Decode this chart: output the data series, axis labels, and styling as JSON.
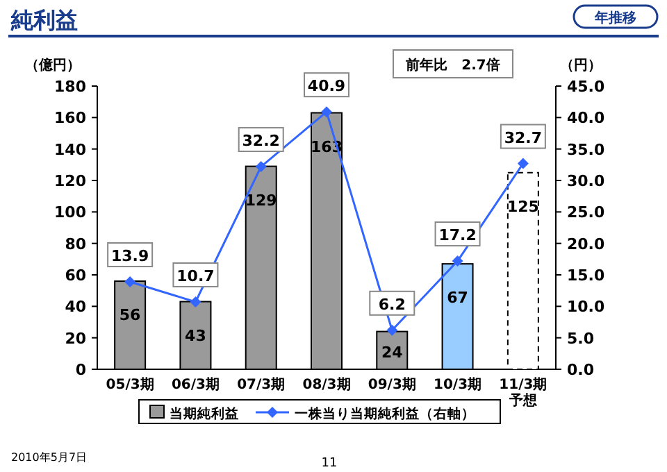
{
  "chart_data": {
    "type": "bar",
    "title": "純利益",
    "subtitle": "年推移",
    "ylabel": "（億円）",
    "y2label": "（円）",
    "categories": [
      "05/3期",
      "06/3期",
      "07/3期",
      "08/3期",
      "09/3期",
      "10/3期",
      "11/3期予想"
    ],
    "series": [
      {
        "name": "当期純利益",
        "colors": [
          "#9a9a9a",
          "#9a9a9a",
          "#9a9a9a",
          "#9a9a9a",
          "#9a9a9a",
          "#99ccff",
          "#ffffff"
        ],
        "values": [
          56,
          43,
          129,
          163,
          24,
          67,
          125
        ]
      },
      {
        "name": "一株当り当期純利益（右軸）",
        "type": "line",
        "axis": "y2",
        "color": "#3366ff",
        "marker": "diamond",
        "values": [
          13.9,
          10.7,
          32.2,
          40.9,
          6.2,
          17.2,
          32.7
        ]
      }
    ],
    "ylim": [
      0,
      180
    ],
    "yticks": [
      0,
      20,
      40,
      60,
      80,
      100,
      120,
      140,
      160,
      180
    ],
    "y2lim": [
      0,
      45
    ],
    "y2ticks": [
      {
        "value": 0,
        "label": "0.0"
      },
      {
        "value": 5,
        "label": "5.0"
      },
      {
        "value": 10,
        "label": "10.0"
      },
      {
        "value": 15,
        "label": "15.0"
      },
      {
        "value": 20,
        "label": "20.0"
      },
      {
        "value": 25,
        "label": "25.0"
      },
      {
        "value": 30,
        "label": "30.0"
      },
      {
        "value": 35,
        "label": "35.0"
      },
      {
        "value": 40,
        "label": "40.0"
      },
      {
        "value": 45,
        "label": "45.0"
      }
    ],
    "data_labels": true,
    "legend": "bottom",
    "grid": false,
    "annotations": [
      "前年比　2.7倍",
      "2010年5月7日",
      "11"
    ]
  }
}
